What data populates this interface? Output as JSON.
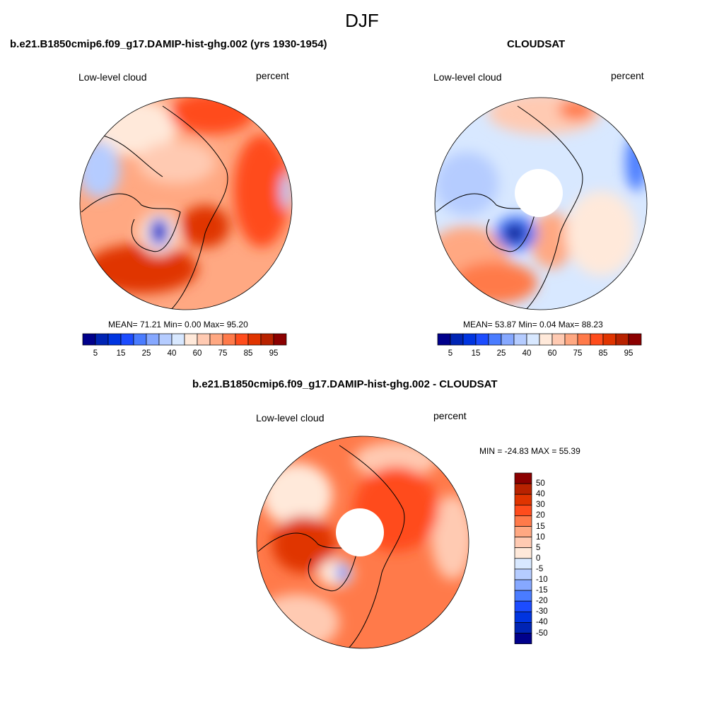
{
  "title": "DJF",
  "panels": [
    {
      "title": "b.e21.B1850cmip6.f09_g17.DAMIP-hist-ghg.002 (yrs 1930-1954)",
      "left_label": "Low-level cloud",
      "right_label": "percent",
      "stats": "MEAN=  71.21  Min=   0.00  Max=  95.20"
    },
    {
      "title": "CLOUDSAT",
      "left_label": "Low-level cloud",
      "right_label": "percent",
      "stats": "MEAN=  53.87  Min=   0.04  Max=  88.23"
    },
    {
      "title": "b.e21.B1850cmip6.f09_g17.DAMIP-hist-ghg.002 - CLOUDSAT",
      "left_label": "Low-level cloud",
      "right_label": "percent",
      "stats": "MIN = -24.83 MAX =  55.39"
    }
  ],
  "colorbar_abs": {
    "labels": [
      "5",
      "15",
      "25",
      "40",
      "60",
      "75",
      "85",
      "95"
    ]
  },
  "colorbar_diff": {
    "labels": [
      "50",
      "40",
      "30",
      "20",
      "15",
      "10",
      "5",
      "0",
      "-5",
      "-10",
      "-15",
      "-20",
      "-30",
      "-40",
      "-50"
    ]
  },
  "colors": [
    "#00008b",
    "#0024b4",
    "#0034e0",
    "#1c4cff",
    "#4a7cff",
    "#86a8ff",
    "#b5ccff",
    "#d8e8ff",
    "#ffe9da",
    "#ffcab2",
    "#ffa882",
    "#ff7a4a",
    "#ff4c1c",
    "#e03400",
    "#b82200",
    "#8b0000"
  ]
}
